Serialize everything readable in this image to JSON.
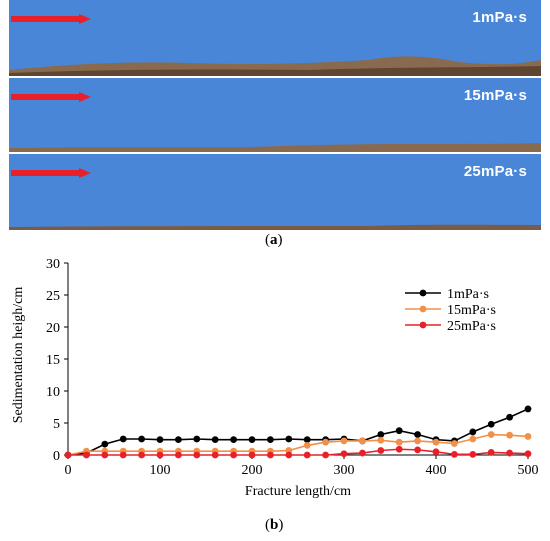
{
  "panel_a": {
    "caption_open": "(",
    "caption_letter": "a",
    "caption_close": ")",
    "strips": [
      {
        "label": "1mPa·s"
      },
      {
        "label": "15mPa·s"
      },
      {
        "label": "25mPa·s"
      }
    ],
    "colors": {
      "fluid": "#4a86d8",
      "arrow": "#e8202a"
    }
  },
  "panel_b": {
    "caption_open": "(",
    "caption_letter": "b",
    "caption_close": ")"
  },
  "chart_data": {
    "type": "line",
    "title": "",
    "xlabel": "Fracture length/cm",
    "ylabel": "Sedimentation heigh/cm",
    "xlim": [
      0,
      500
    ],
    "ylim": [
      0,
      30
    ],
    "xticks": [
      0,
      100,
      200,
      300,
      400,
      500
    ],
    "yticks": [
      0,
      5,
      10,
      15,
      20,
      25,
      30
    ],
    "grid": false,
    "legend_position": "top-right",
    "series": [
      {
        "name": "1mPa·s",
        "color": "#000000",
        "x": [
          0,
          20,
          40,
          60,
          80,
          100,
          120,
          140,
          160,
          180,
          200,
          220,
          240,
          260,
          280,
          300,
          320,
          340,
          360,
          380,
          400,
          420,
          440,
          460,
          480,
          500
        ],
        "y": [
          0,
          0.3,
          1.7,
          2.5,
          2.5,
          2.4,
          2.4,
          2.5,
          2.4,
          2.4,
          2.4,
          2.4,
          2.5,
          2.4,
          2.4,
          2.5,
          2.2,
          3.2,
          3.8,
          3.2,
          2.4,
          2.2,
          3.6,
          4.8,
          5.9,
          7.2
        ]
      },
      {
        "name": "15mPa·s",
        "color": "#f0904a",
        "x": [
          0,
          20,
          40,
          60,
          80,
          100,
          120,
          140,
          160,
          180,
          200,
          220,
          240,
          260,
          280,
          300,
          320,
          340,
          360,
          380,
          400,
          420,
          440,
          460,
          480,
          500
        ],
        "y": [
          0,
          0.6,
          0.6,
          0.6,
          0.6,
          0.6,
          0.6,
          0.6,
          0.6,
          0.6,
          0.6,
          0.6,
          0.7,
          1.5,
          2.0,
          2.2,
          2.2,
          2.3,
          2.0,
          2.2,
          2.0,
          1.8,
          2.5,
          3.2,
          3.1,
          2.9
        ]
      },
      {
        "name": "25mPa·s",
        "color": "#e8202a",
        "x": [
          0,
          20,
          40,
          60,
          80,
          100,
          120,
          140,
          160,
          180,
          200,
          220,
          240,
          260,
          280,
          300,
          320,
          340,
          360,
          380,
          400,
          420,
          440,
          460,
          480,
          500
        ],
        "y": [
          0,
          0,
          0,
          0,
          0,
          0,
          0,
          0,
          0,
          0,
          0,
          0,
          0,
          0,
          0,
          0.2,
          0.3,
          0.7,
          0.9,
          0.8,
          0.5,
          0.1,
          0.1,
          0.4,
          0.3,
          0.2
        ]
      }
    ]
  }
}
